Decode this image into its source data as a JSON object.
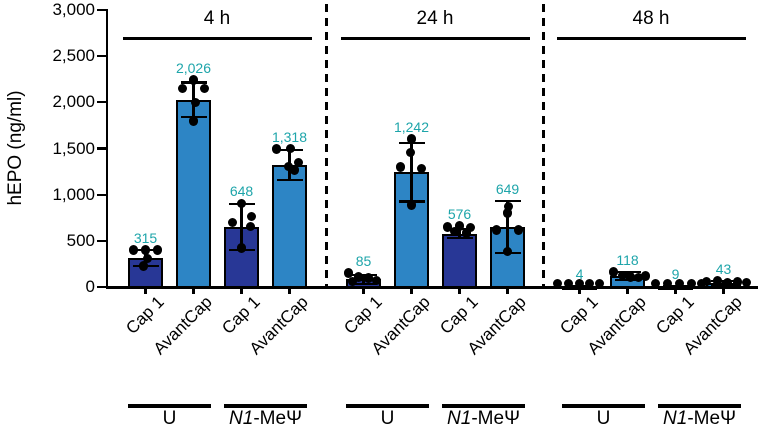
{
  "chart_data": {
    "type": "bar",
    "title": "",
    "xlabel": "",
    "ylabel": "hEPO (ng/ml)",
    "ylim": [
      0,
      3000
    ],
    "grid": false,
    "legend": "none",
    "yticks": [
      {
        "value": 0,
        "label": "0"
      },
      {
        "value": 500,
        "label": "500"
      },
      {
        "value": 1000,
        "label": "1,000"
      },
      {
        "value": 1500,
        "label": "1,500"
      },
      {
        "value": 2000,
        "label": "2,000"
      },
      {
        "value": 2500,
        "label": "2,500"
      },
      {
        "value": 3000,
        "label": "3,000"
      }
    ],
    "colors": {
      "cap1_bar": "#283796",
      "avantcap_bar": "#2D85C5",
      "value_label": "#1EA5AA",
      "line": "#000000"
    },
    "panels": [
      {
        "label": "4 h",
        "groups": [
          {
            "label_parts": [
              {
                "text": "U",
                "italic": false
              }
            ],
            "bars": [
              {
                "condition": "Cap 1",
                "value": 315,
                "display": "315",
                "err_lo": 230,
                "err_hi": 405,
                "points": [
                  {
                    "v": 400,
                    "dx": -12
                  },
                  {
                    "v": 398,
                    "dx": 0
                  },
                  {
                    "v": 400,
                    "dx": 12
                  },
                  {
                    "v": 310,
                    "dx": 2
                  },
                  {
                    "v": 225,
                    "dx": -2
                  }
                ]
              },
              {
                "condition": "AvantCap",
                "value": 2026,
                "display": "2,026",
                "err_lo": 1845,
                "err_hi": 2215,
                "points": [
                  {
                    "v": 2245,
                    "dx": 0
                  },
                  {
                    "v": 2150,
                    "dx": -11
                  },
                  {
                    "v": 2150,
                    "dx": 11
                  },
                  {
                    "v": 2000,
                    "dx": 2
                  },
                  {
                    "v": 1795,
                    "dx": 0
                  }
                ]
              }
            ]
          },
          {
            "label_parts": [
              {
                "text": "N1",
                "italic": true
              },
              {
                "text": "-MeΨ",
                "italic": false
              }
            ],
            "bars": [
              {
                "condition": "Cap 1",
                "value": 648,
                "display": "648",
                "err_lo": 400,
                "err_hi": 900,
                "points": [
                  {
                    "v": 905,
                    "dx": 0
                  },
                  {
                    "v": 765,
                    "dx": 10
                  },
                  {
                    "v": 700,
                    "dx": -9
                  },
                  {
                    "v": 655,
                    "dx": 9
                  },
                  {
                    "v": 420,
                    "dx": 0
                  }
                ]
              },
              {
                "condition": "AvantCap",
                "value": 1318,
                "display": "1,318",
                "err_lo": 1155,
                "err_hi": 1480,
                "points": [
                  {
                    "v": 1495,
                    "dx": -13
                  },
                  {
                    "v": 1500,
                    "dx": 1
                  },
                  {
                    "v": 1350,
                    "dx": 9
                  },
                  {
                    "v": 1305,
                    "dx": -1
                  },
                  {
                    "v": 1265,
                    "dx": 5
                  }
                ]
              }
            ]
          }
        ]
      },
      {
        "label": "24 h",
        "groups": [
          {
            "label_parts": [
              {
                "text": "U",
                "italic": false
              }
            ],
            "bars": [
              {
                "condition": "Cap 1",
                "value": 85,
                "display": "85",
                "err_lo": 35,
                "err_hi": 130,
                "points": [
                  {
                    "v": 150,
                    "dx": -15
                  },
                  {
                    "v": 110,
                    "dx": -5
                  },
                  {
                    "v": 95,
                    "dx": 5
                  },
                  {
                    "v": 70,
                    "dx": 13
                  },
                  {
                    "v": 60,
                    "dx": -11
                  }
                ]
              },
              {
                "condition": "AvantCap",
                "value": 1242,
                "display": "1,242",
                "err_lo": 925,
                "err_hi": 1560,
                "points": [
                  {
                    "v": 1600,
                    "dx": 0
                  },
                  {
                    "v": 1455,
                    "dx": -1
                  },
                  {
                    "v": 1300,
                    "dx": -11
                  },
                  {
                    "v": 1285,
                    "dx": 10
                  },
                  {
                    "v": 890,
                    "dx": 0
                  }
                ]
              }
            ]
          },
          {
            "label_parts": [
              {
                "text": "N1",
                "italic": true
              },
              {
                "text": "-MeΨ",
                "italic": false
              }
            ],
            "bars": [
              {
                "condition": "Cap 1",
                "value": 576,
                "display": "576",
                "err_lo": 535,
                "err_hi": 625,
                "points": [
                  {
                    "v": 650,
                    "dx": -12
                  },
                  {
                    "v": 660,
                    "dx": 0
                  },
                  {
                    "v": 645,
                    "dx": 11
                  },
                  {
                    "v": 600,
                    "dx": -5
                  },
                  {
                    "v": 585,
                    "dx": 7
                  }
                ]
              },
              {
                "condition": "AvantCap",
                "value": 649,
                "display": "649",
                "err_lo": 370,
                "err_hi": 930,
                "points": [
                  {
                    "v": 870,
                    "dx": 1
                  },
                  {
                    "v": 800,
                    "dx": 0
                  },
                  {
                    "v": 620,
                    "dx": -11
                  },
                  {
                    "v": 615,
                    "dx": 11
                  },
                  {
                    "v": 385,
                    "dx": 0
                  }
                ]
              }
            ]
          }
        ]
      },
      {
        "label": "48 h",
        "groups": [
          {
            "label_parts": [
              {
                "text": "U",
                "italic": false
              }
            ],
            "bars": [
              {
                "condition": "Cap 1",
                "value": 4,
                "display": "4",
                "err_lo": 1,
                "err_hi": 9,
                "points": [
                  {
                    "v": 8,
                    "dx": -22
                  },
                  {
                    "v": 6,
                    "dx": -11
                  },
                  {
                    "v": 5,
                    "dx": 0
                  },
                  {
                    "v": 6,
                    "dx": 10
                  },
                  {
                    "v": 8,
                    "dx": 20
                  }
                ]
              },
              {
                "condition": "AvantCap",
                "value": 118,
                "display": "118",
                "err_lo": 75,
                "err_hi": 160,
                "points": [
                  {
                    "v": 165,
                    "dx": -14
                  },
                  {
                    "v": 125,
                    "dx": -5
                  },
                  {
                    "v": 110,
                    "dx": 3
                  },
                  {
                    "v": 105,
                    "dx": 11
                  },
                  {
                    "v": 120,
                    "dx": 18
                  }
                ]
              }
            ]
          },
          {
            "label_parts": [
              {
                "text": "N1",
                "italic": true
              },
              {
                "text": "-MeΨ",
                "italic": false
              }
            ],
            "bars": [
              {
                "condition": "Cap 1",
                "value": 9,
                "display": "9",
                "err_lo": 3,
                "err_hi": 14,
                "points": [
                  {
                    "v": 10,
                    "dx": -20
                  },
                  {
                    "v": 9,
                    "dx": -8
                  },
                  {
                    "v": 8,
                    "dx": 4
                  },
                  {
                    "v": 9,
                    "dx": 16
                  },
                  {
                    "v": 8,
                    "dx": 26
                  }
                ]
              },
              {
                "condition": "AvantCap",
                "value": 43,
                "display": "43",
                "err_lo": 25,
                "err_hi": 62,
                "points": [
                  {
                    "v": 60,
                    "dx": -17
                  },
                  {
                    "v": 65,
                    "dx": -6
                  },
                  {
                    "v": 50,
                    "dx": 4
                  },
                  {
                    "v": 55,
                    "dx": 14
                  },
                  {
                    "v": 48,
                    "dx": 23
                  }
                ]
              }
            ]
          }
        ]
      }
    ]
  }
}
